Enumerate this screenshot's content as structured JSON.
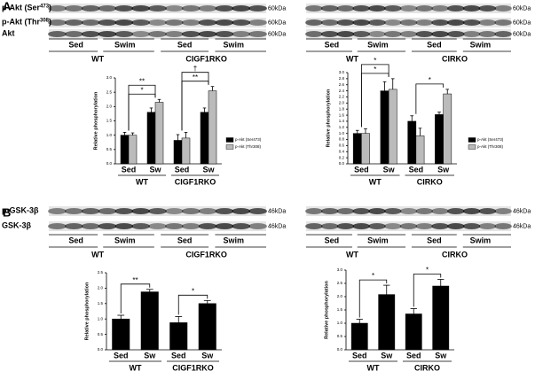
{
  "panels": [
    {
      "letter": "A",
      "blots": [
        {
          "rows": [
            [
              "p-Akt (Ser",
              "473",
              ")"
            ],
            [
              "p-Akt (Thr",
              "308",
              ")"
            ],
            [
              "Akt"
            ]
          ],
          "markers": [
            "60kDa",
            "60kDa",
            "60kDa"
          ],
          "lanes": [
            "Sed",
            "Swim",
            "Sed",
            "Swim"
          ],
          "groups": [
            "WT",
            "CIGF1RKO"
          ]
        },
        {
          "markers": [
            "60kDa",
            "60kDa",
            "60kDa"
          ],
          "lanes": [
            "Sed",
            "Swim",
            "Sed",
            "Swim"
          ],
          "groups": [
            "WT",
            "CIRKO"
          ]
        }
      ]
    },
    {
      "letter": "B",
      "blots": [
        {
          "rows": [
            [
              "p-GSK-3β"
            ],
            [
              "GSK-3β"
            ]
          ],
          "markers": [
            "46kDa",
            "46kDa"
          ],
          "lanes": [
            "Sed",
            "Swim",
            "Sed",
            "Swim"
          ],
          "groups": [
            "WT",
            "CIGF1RKO"
          ]
        },
        {
          "markers": [
            "46kDa",
            "46kDa"
          ],
          "lanes": [
            "Sed",
            "Swim",
            "Sed",
            "Swim"
          ],
          "groups": [
            "WT",
            "CIRKO"
          ]
        }
      ]
    }
  ],
  "chart_data": [
    {
      "type": "bar",
      "ylabel": "Relative phosphorylation",
      "categories": [
        "Sed",
        "Sw",
        "Sed",
        "Sw"
      ],
      "groups": [
        "WT",
        "CIGF1RKO"
      ],
      "series": [
        {
          "name": "p-Akt (Ser473)",
          "color": "#000000",
          "values": [
            1.0,
            1.8,
            0.82,
            1.8
          ],
          "errors": [
            0.1,
            0.15,
            0.2,
            0.15
          ]
        },
        {
          "name": "p-Akt (Thr308)",
          "color": "#bbbbbb",
          "values": [
            1.0,
            2.15,
            0.9,
            2.55
          ],
          "errors": [
            0.08,
            0.1,
            0.2,
            0.15
          ]
        }
      ],
      "ylim": [
        0,
        3
      ],
      "yticks": [
        {
          "value": 0,
          "label": "0.0"
        },
        0.5,
        {
          "value": 1,
          "label": "1.0"
        },
        1.5,
        {
          "value": 2,
          "label": "2.0"
        },
        2.5,
        {
          "value": 3,
          "label": "3.0"
        }
      ],
      "annotations": [
        "*",
        "**",
        "**",
        "†"
      ],
      "legend": "right"
    },
    {
      "type": "bar",
      "ylabel": "Relative phosphorylation",
      "categories": [
        "Sed",
        "Sw",
        "Sed",
        "Sw"
      ],
      "groups": [
        "WT",
        "CIRKO"
      ],
      "series": [
        {
          "name": "p-Akt (Ser473)",
          "color": "#000000",
          "values": [
            1.0,
            2.4,
            1.4,
            1.62
          ],
          "errors": [
            0.1,
            0.3,
            0.18,
            0.08
          ]
        },
        {
          "name": "p-Akt (Thr308)",
          "color": "#bbbbbb",
          "values": [
            1.0,
            2.45,
            0.92,
            2.3
          ],
          "errors": [
            0.15,
            0.35,
            0.25,
            0.15
          ]
        }
      ],
      "ylim": [
        0,
        3
      ],
      "yticks": [
        {
          "value": 0,
          "label": "0.0"
        },
        0.2,
        0.4,
        0.6,
        0.8,
        {
          "value": 1,
          "label": "1.0"
        },
        1.2,
        1.4,
        1.6,
        1.8,
        {
          "value": 2,
          "label": "2.0"
        },
        2.2,
        2.4,
        2.6,
        2.8,
        {
          "value": 3,
          "label": "3.0"
        }
      ],
      "annotations": [
        "*",
        "*",
        "*"
      ],
      "legend": "right"
    },
    {
      "type": "bar",
      "ylabel": "Relative phosphorylation",
      "categories": [
        "Sed",
        "Sw",
        "Sed",
        "Sw"
      ],
      "groups": [
        "WT",
        "CIGF1RKO"
      ],
      "series": [
        {
          "color": "#000000",
          "values": [
            1.0,
            1.88,
            0.88,
            1.5
          ],
          "errors": [
            0.12,
            0.08,
            0.2,
            0.1
          ]
        }
      ],
      "ylim": [
        0,
        2.5
      ],
      "yticks": [
        {
          "value": 0,
          "label": "0.0"
        },
        0.5,
        {
          "value": 1,
          "label": "1.0"
        },
        1.5,
        {
          "value": 2,
          "label": "2.0"
        },
        2.5
      ],
      "annotations": [
        "**",
        "*"
      ]
    },
    {
      "type": "bar",
      "ylabel": "Relative phosphorylation",
      "categories": [
        "Sed",
        "Sw",
        "Sed",
        "Sw"
      ],
      "groups": [
        "WT",
        "CIRKO"
      ],
      "series": [
        {
          "color": "#000000",
          "values": [
            1.0,
            2.08,
            1.35,
            2.4
          ],
          "errors": [
            0.15,
            0.35,
            0.2,
            0.25
          ]
        }
      ],
      "ylim": [
        0,
        3
      ],
      "yticks": [
        {
          "value": 0,
          "label": "0.0"
        },
        0.5,
        {
          "value": 1,
          "label": "1.0"
        },
        1.5,
        {
          "value": 2,
          "label": "2.0"
        },
        2.5,
        {
          "value": 3,
          "label": "3.0"
        }
      ],
      "annotations": [
        "*",
        "*"
      ]
    }
  ]
}
